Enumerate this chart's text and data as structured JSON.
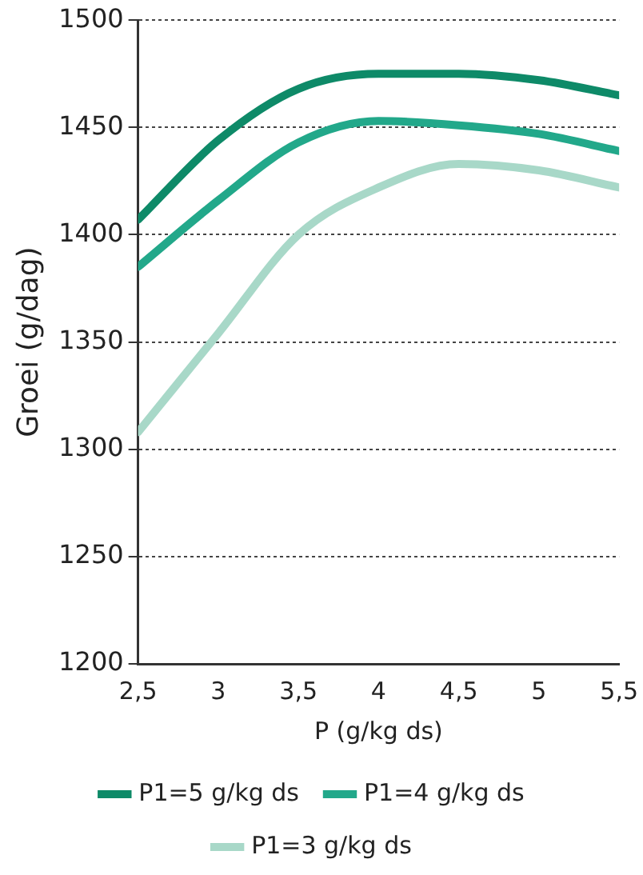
{
  "chart_data": {
    "type": "line",
    "xlabel": "P (g/kg ds)",
    "ylabel": "Groei (g/dag)",
    "x": [
      2.5,
      3,
      3.5,
      4,
      4.5,
      5,
      5.5
    ],
    "series": [
      {
        "name": "P1=5 g/kg ds",
        "color": "#0e8a68",
        "values": [
          1407,
          1444,
          1468,
          1475,
          1475,
          1472,
          1465
        ]
      },
      {
        "name": "P1=4 g/kg ds",
        "color": "#22a88a",
        "values": [
          1385,
          1416,
          1443,
          1453,
          1451,
          1447,
          1439
        ]
      },
      {
        "name": "P1=3 g/kg ds",
        "color": "#a8d8c8",
        "values": [
          1308,
          1354,
          1400,
          1422,
          1433,
          1430,
          1422
        ]
      }
    ],
    "xlim": [
      2.5,
      5.5
    ],
    "xticks": [
      {
        "value": 2.5,
        "label": "2,5"
      },
      3,
      {
        "value": 3.5,
        "label": "3,5"
      },
      4,
      {
        "value": 4.5,
        "label": "4,5"
      },
      5,
      {
        "value": 5.5,
        "label": "5,5"
      }
    ],
    "ylim": [
      1200,
      1500
    ],
    "yticks": [
      1200,
      1250,
      1300,
      1350,
      1400,
      1450,
      1500
    ],
    "grid": "y",
    "legend": "bottom",
    "marker": "none",
    "line_style": "solid"
  }
}
